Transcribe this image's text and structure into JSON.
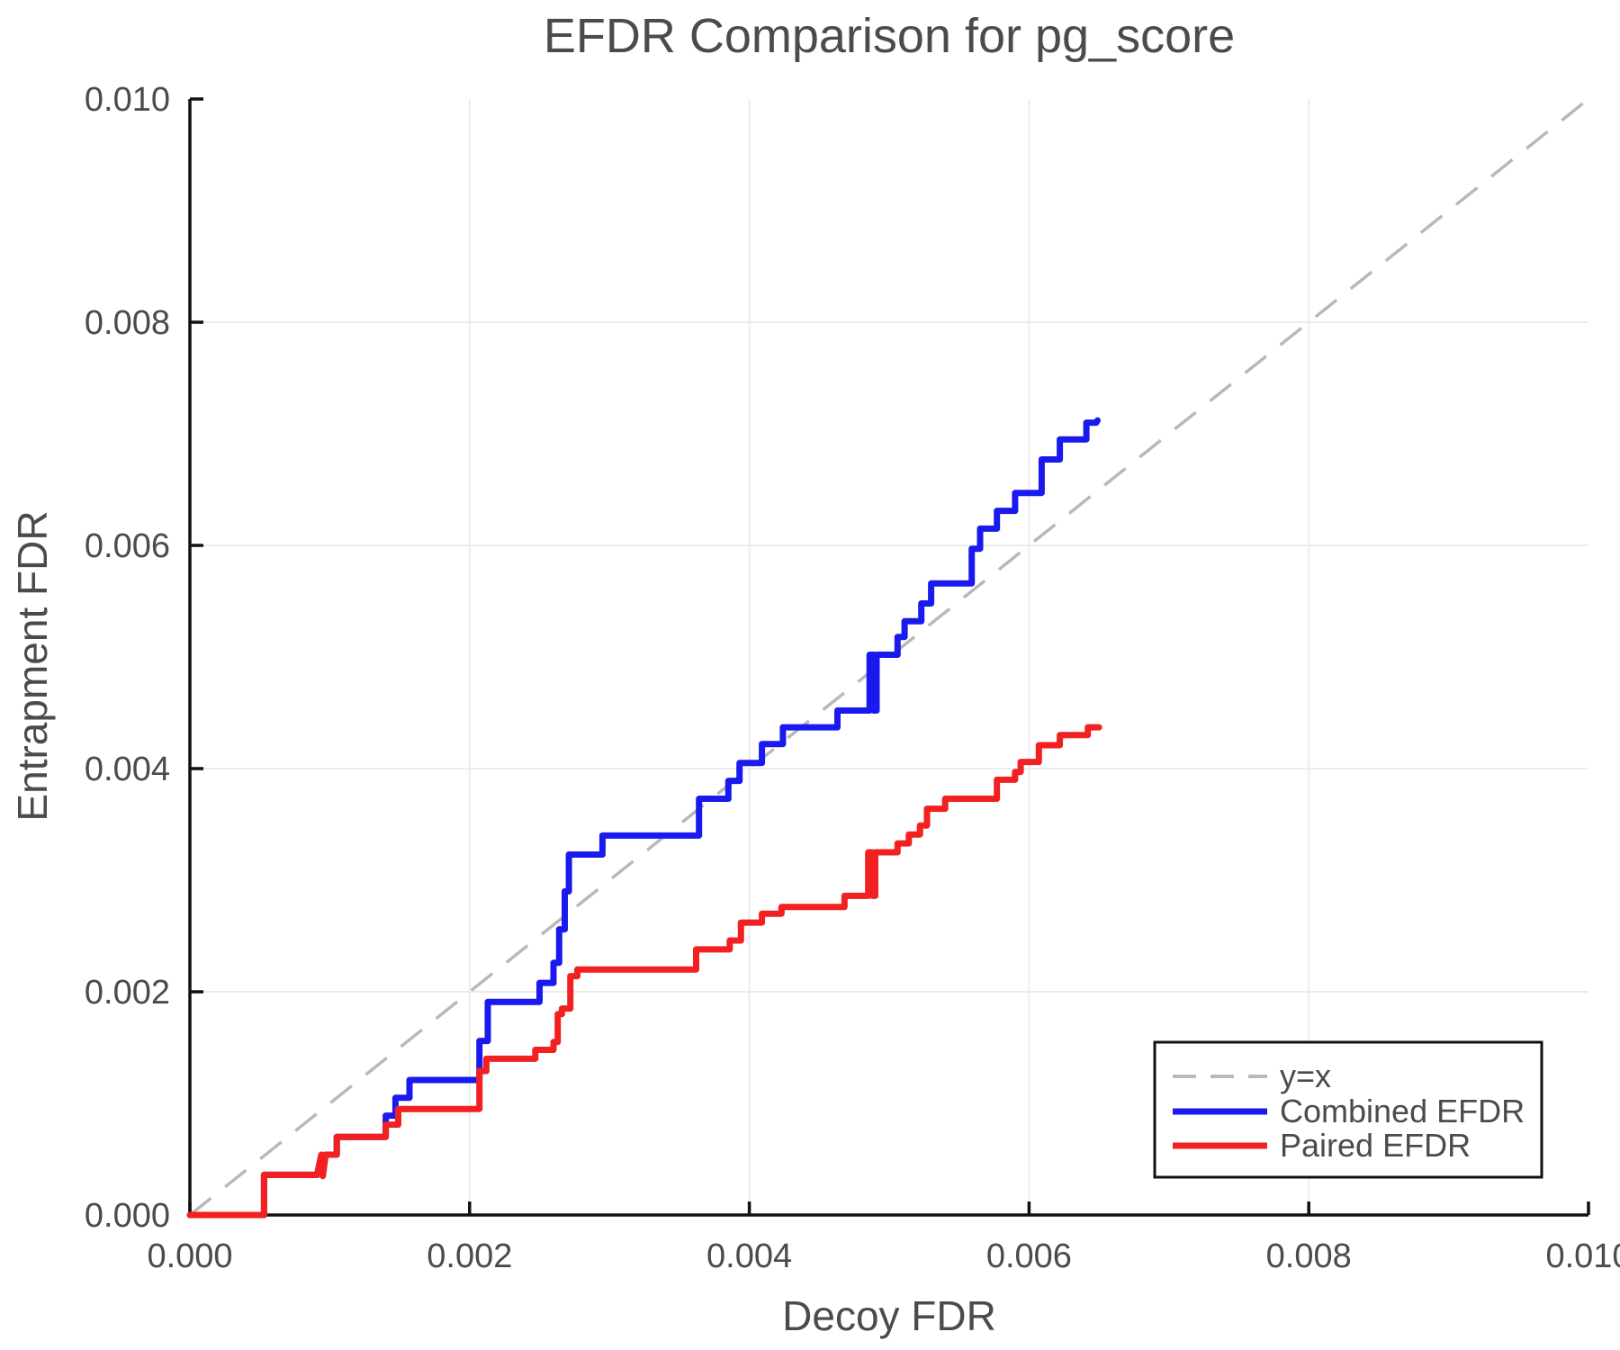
{
  "title": "EFDR Comparison for pg_score",
  "colors": {
    "combined": "#1a1aee",
    "paired": "#f22020",
    "reference": "#b9b9b9",
    "grid": "#ececec",
    "axis": "#111111",
    "text": "#4b4b4b"
  },
  "legend": {
    "entries": [
      {
        "label": "y=x",
        "color": "#b9b9b9",
        "dashed": true
      },
      {
        "label": "Combined EFDR",
        "color": "#1a1aee",
        "dashed": false
      },
      {
        "label": "Paired EFDR",
        "color": "#f22020",
        "dashed": false
      }
    ]
  },
  "chart_data": {
    "type": "line",
    "title": "EFDR Comparison for pg_score",
    "xlabel": "Decoy FDR",
    "ylabel": "Entrapment FDR",
    "xlim": [
      0,
      0.01
    ],
    "ylim": [
      0,
      0.01
    ],
    "grid": true,
    "legend_position": "lower right",
    "x_ticks": [
      {
        "value": 0.0,
        "label": "0.000"
      },
      {
        "value": 0.002,
        "label": "0.002"
      },
      {
        "value": 0.004,
        "label": "0.004"
      },
      {
        "value": 0.006,
        "label": "0.006"
      },
      {
        "value": 0.008,
        "label": "0.008"
      },
      {
        "value": 0.01,
        "label": "0.010"
      }
    ],
    "y_ticks": [
      {
        "value": 0.0,
        "label": "0.000"
      },
      {
        "value": 0.002,
        "label": "0.002"
      },
      {
        "value": 0.004,
        "label": "0.004"
      },
      {
        "value": 0.006,
        "label": "0.006"
      },
      {
        "value": 0.008,
        "label": "0.008"
      },
      {
        "value": 0.01,
        "label": "0.010"
      }
    ],
    "reference_line": {
      "name": "y=x",
      "style": "dashed",
      "color": "#b9b9b9",
      "from": [
        0,
        0
      ],
      "to": [
        0.01,
        0.01
      ]
    },
    "series": [
      {
        "name": "Combined EFDR",
        "color": "#1a1aee",
        "points": [
          [
            0.0,
            0.0
          ],
          [
            0.00053,
            0.0
          ],
          [
            0.00053,
            0.00036
          ],
          [
            0.00091,
            0.00036
          ],
          [
            0.00094,
            0.00054
          ],
          [
            0.00095,
            0.00035
          ],
          [
            0.00097,
            0.00054
          ],
          [
            0.00105,
            0.00054
          ],
          [
            0.00105,
            0.0007
          ],
          [
            0.0014,
            0.0007
          ],
          [
            0.0014,
            0.00089
          ],
          [
            0.00147,
            0.00089
          ],
          [
            0.00147,
            0.00105
          ],
          [
            0.00157,
            0.00105
          ],
          [
            0.00157,
            0.00121
          ],
          [
            0.00207,
            0.00121
          ],
          [
            0.00207,
            0.00156
          ],
          [
            0.00213,
            0.00156
          ],
          [
            0.00213,
            0.00191
          ],
          [
            0.0025,
            0.00191
          ],
          [
            0.0025,
            0.00208
          ],
          [
            0.0026,
            0.00208
          ],
          [
            0.0026,
            0.00226
          ],
          [
            0.00264,
            0.00226
          ],
          [
            0.00264,
            0.00256
          ],
          [
            0.00268,
            0.00256
          ],
          [
            0.00268,
            0.0029
          ],
          [
            0.00271,
            0.0029
          ],
          [
            0.00271,
            0.00323
          ],
          [
            0.00295,
            0.00323
          ],
          [
            0.00295,
            0.0034
          ],
          [
            0.00364,
            0.0034
          ],
          [
            0.00364,
            0.00373
          ],
          [
            0.00385,
            0.00373
          ],
          [
            0.00385,
            0.00389
          ],
          [
            0.00393,
            0.00389
          ],
          [
            0.00393,
            0.00405
          ],
          [
            0.00409,
            0.00405
          ],
          [
            0.00409,
            0.00422
          ],
          [
            0.00424,
            0.00422
          ],
          [
            0.00424,
            0.00437
          ],
          [
            0.00463,
            0.00437
          ],
          [
            0.00463,
            0.00452
          ],
          [
            0.00486,
            0.00452
          ],
          [
            0.00486,
            0.00502
          ],
          [
            0.00489,
            0.00502
          ],
          [
            0.00489,
            0.00452
          ],
          [
            0.00491,
            0.00452
          ],
          [
            0.00491,
            0.00502
          ],
          [
            0.00506,
            0.00502
          ],
          [
            0.00506,
            0.00518
          ],
          [
            0.00511,
            0.00518
          ],
          [
            0.00511,
            0.00532
          ],
          [
            0.00523,
            0.00532
          ],
          [
            0.00523,
            0.00548
          ],
          [
            0.0053,
            0.00548
          ],
          [
            0.0053,
            0.00566
          ],
          [
            0.00559,
            0.00566
          ],
          [
            0.00559,
            0.00597
          ],
          [
            0.00565,
            0.00597
          ],
          [
            0.00565,
            0.00615
          ],
          [
            0.00577,
            0.00615
          ],
          [
            0.00577,
            0.00631
          ],
          [
            0.0059,
            0.00631
          ],
          [
            0.0059,
            0.00647
          ],
          [
            0.00609,
            0.00647
          ],
          [
            0.00609,
            0.00677
          ],
          [
            0.00622,
            0.00677
          ],
          [
            0.00622,
            0.00695
          ],
          [
            0.00641,
            0.00695
          ],
          [
            0.00641,
            0.0071
          ],
          [
            0.00648,
            0.0071
          ],
          [
            0.00649,
            0.00712
          ]
        ]
      },
      {
        "name": "Paired EFDR",
        "color": "#f22020",
        "points": [
          [
            0.0,
            0.0
          ],
          [
            0.00053,
            0.0
          ],
          [
            0.00053,
            0.00036
          ],
          [
            0.00091,
            0.00036
          ],
          [
            0.00094,
            0.00054
          ],
          [
            0.00095,
            0.00035
          ],
          [
            0.00097,
            0.00054
          ],
          [
            0.00105,
            0.00054
          ],
          [
            0.00105,
            0.0007
          ],
          [
            0.0014,
            0.0007
          ],
          [
            0.0014,
            0.00081
          ],
          [
            0.00149,
            0.00081
          ],
          [
            0.00149,
            0.00095
          ],
          [
            0.00207,
            0.00095
          ],
          [
            0.00207,
            0.00129
          ],
          [
            0.00212,
            0.00129
          ],
          [
            0.00212,
            0.0014
          ],
          [
            0.00247,
            0.0014
          ],
          [
            0.00247,
            0.00148
          ],
          [
            0.0026,
            0.00148
          ],
          [
            0.0026,
            0.00155
          ],
          [
            0.00263,
            0.00155
          ],
          [
            0.00263,
            0.0018
          ],
          [
            0.00266,
            0.0018
          ],
          [
            0.00266,
            0.00185
          ],
          [
            0.00272,
            0.00185
          ],
          [
            0.00272,
            0.00214
          ],
          [
            0.00277,
            0.00214
          ],
          [
            0.00277,
            0.0022
          ],
          [
            0.00362,
            0.0022
          ],
          [
            0.00362,
            0.00238
          ],
          [
            0.00386,
            0.00238
          ],
          [
            0.00386,
            0.00246
          ],
          [
            0.00394,
            0.00246
          ],
          [
            0.00394,
            0.00262
          ],
          [
            0.00409,
            0.00262
          ],
          [
            0.00409,
            0.0027
          ],
          [
            0.00423,
            0.0027
          ],
          [
            0.00423,
            0.00276
          ],
          [
            0.00468,
            0.00276
          ],
          [
            0.00468,
            0.00286
          ],
          [
            0.00485,
            0.00286
          ],
          [
            0.00485,
            0.00325
          ],
          [
            0.00488,
            0.00325
          ],
          [
            0.00488,
            0.00286
          ],
          [
            0.0049,
            0.00286
          ],
          [
            0.0049,
            0.00325
          ],
          [
            0.00506,
            0.00325
          ],
          [
            0.00506,
            0.00333
          ],
          [
            0.00514,
            0.00333
          ],
          [
            0.00514,
            0.00341
          ],
          [
            0.00522,
            0.00341
          ],
          [
            0.00522,
            0.00349
          ],
          [
            0.00527,
            0.00349
          ],
          [
            0.00527,
            0.00364
          ],
          [
            0.0054,
            0.00364
          ],
          [
            0.0054,
            0.00373
          ],
          [
            0.00577,
            0.00373
          ],
          [
            0.00577,
            0.0039
          ],
          [
            0.0059,
            0.0039
          ],
          [
            0.0059,
            0.00397
          ],
          [
            0.00594,
            0.00397
          ],
          [
            0.00594,
            0.00406
          ],
          [
            0.00607,
            0.00406
          ],
          [
            0.00607,
            0.00421
          ],
          [
            0.00622,
            0.00421
          ],
          [
            0.00622,
            0.0043
          ],
          [
            0.00642,
            0.0043
          ],
          [
            0.00642,
            0.00437
          ],
          [
            0.0065,
            0.00437
          ]
        ]
      }
    ]
  }
}
